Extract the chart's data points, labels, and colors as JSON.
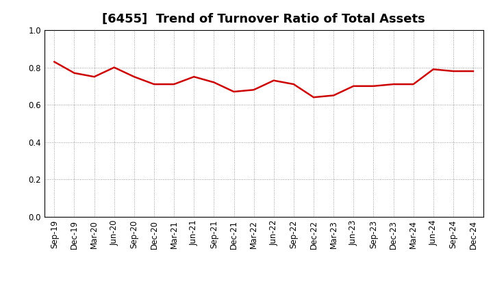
{
  "title": "[6455]  Trend of Turnover Ratio of Total Assets",
  "labels": [
    "Sep-19",
    "Dec-19",
    "Mar-20",
    "Jun-20",
    "Sep-20",
    "Dec-20",
    "Mar-21",
    "Jun-21",
    "Sep-21",
    "Dec-21",
    "Mar-22",
    "Jun-22",
    "Sep-22",
    "Dec-22",
    "Mar-23",
    "Jun-23",
    "Sep-23",
    "Dec-23",
    "Mar-24",
    "Jun-24",
    "Sep-24",
    "Dec-24"
  ],
  "values": [
    0.83,
    0.77,
    0.75,
    0.8,
    0.75,
    0.71,
    0.71,
    0.75,
    0.72,
    0.67,
    0.68,
    0.73,
    0.71,
    0.64,
    0.65,
    0.7,
    0.7,
    0.71,
    0.71,
    0.79,
    0.78,
    0.78
  ],
  "line_color": "#cc0000",
  "line_width": 1.8,
  "ylim": [
    0.0,
    1.0
  ],
  "yticks": [
    0.0,
    0.2,
    0.4,
    0.6,
    0.8,
    1.0
  ],
  "grid_color": "#999999",
  "background_color": "#ffffff",
  "title_fontsize": 13,
  "tick_fontsize": 8.5,
  "spine_color": "#000000"
}
